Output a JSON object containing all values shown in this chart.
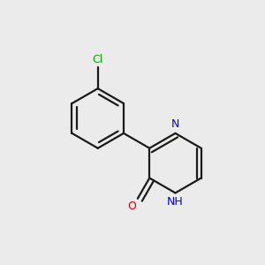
{
  "bg_color": "#ebebeb",
  "bond_color": "#1a1a1a",
  "N_color": "#0000ee",
  "O_color": "#dd0000",
  "Cl_color": "#00aa00",
  "line_width": 1.6,
  "dbo": 0.03,
  "fig_size": [
    3.0,
    3.0
  ],
  "dpi": 100,
  "R": 0.195,
  "BL": 0.195,
  "xlim": [
    -0.85,
    0.85
  ],
  "ylim": [
    -0.8,
    0.9
  ],
  "font_size": 9.0
}
